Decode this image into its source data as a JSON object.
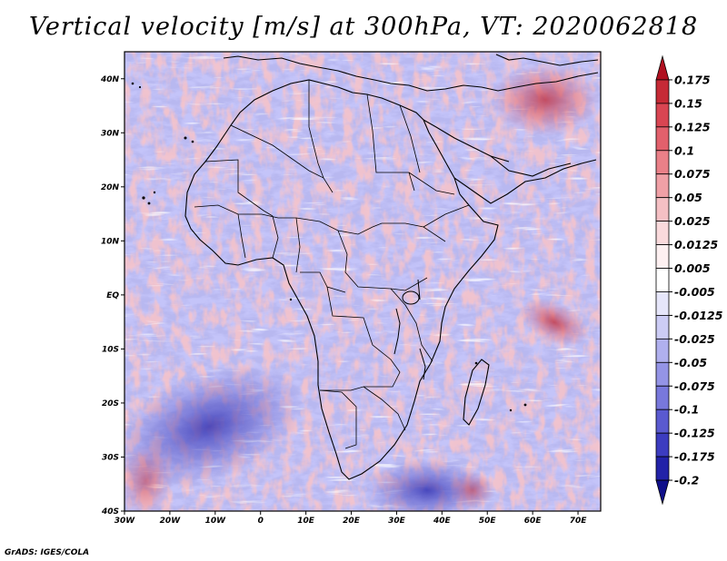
{
  "title": "Vertical velocity [m/s] at 300hPa, VT: 2020062818",
  "credit": "GrADS: IGES/COLA",
  "map": {
    "lat_labels": [
      "40N",
      "30N",
      "20N",
      "10N",
      "EQ",
      "10S",
      "20S",
      "30S",
      "40S"
    ],
    "lon_labels": [
      "30W",
      "20W",
      "10W",
      "0",
      "10E",
      "20E",
      "30E",
      "40E",
      "50E",
      "60E",
      "70E"
    ],
    "lon_range": [
      -30,
      75
    ],
    "lat_range": [
      -40,
      45
    ]
  },
  "colorbar": {
    "levels": [
      "0.175",
      "0.15",
      "0.125",
      "0.1",
      "0.075",
      "0.05",
      "0.025",
      "0.0125",
      "0.005",
      "-0.005",
      "-0.0125",
      "-0.025",
      "-0.05",
      "-0.075",
      "-0.1",
      "-0.125",
      "-0.175",
      "-0.2"
    ],
    "colors": [
      "#b01020",
      "#c62a36",
      "#d94552",
      "#e2606c",
      "#ea8088",
      "#f0a0a6",
      "#f5c0c4",
      "#fadadc",
      "#fdf0f1",
      "#ffffff",
      "#e6e6fa",
      "#ccccf5",
      "#b0b0ee",
      "#9494e6",
      "#7878dc",
      "#5a5ad0",
      "#3c3cc0",
      "#2222a8",
      "#10108a"
    ]
  },
  "palette": {
    "red": "#e85a62",
    "blue": "#6f6fdc",
    "deep_blue": "#2a2aa0",
    "deep_red": "#b82030"
  }
}
